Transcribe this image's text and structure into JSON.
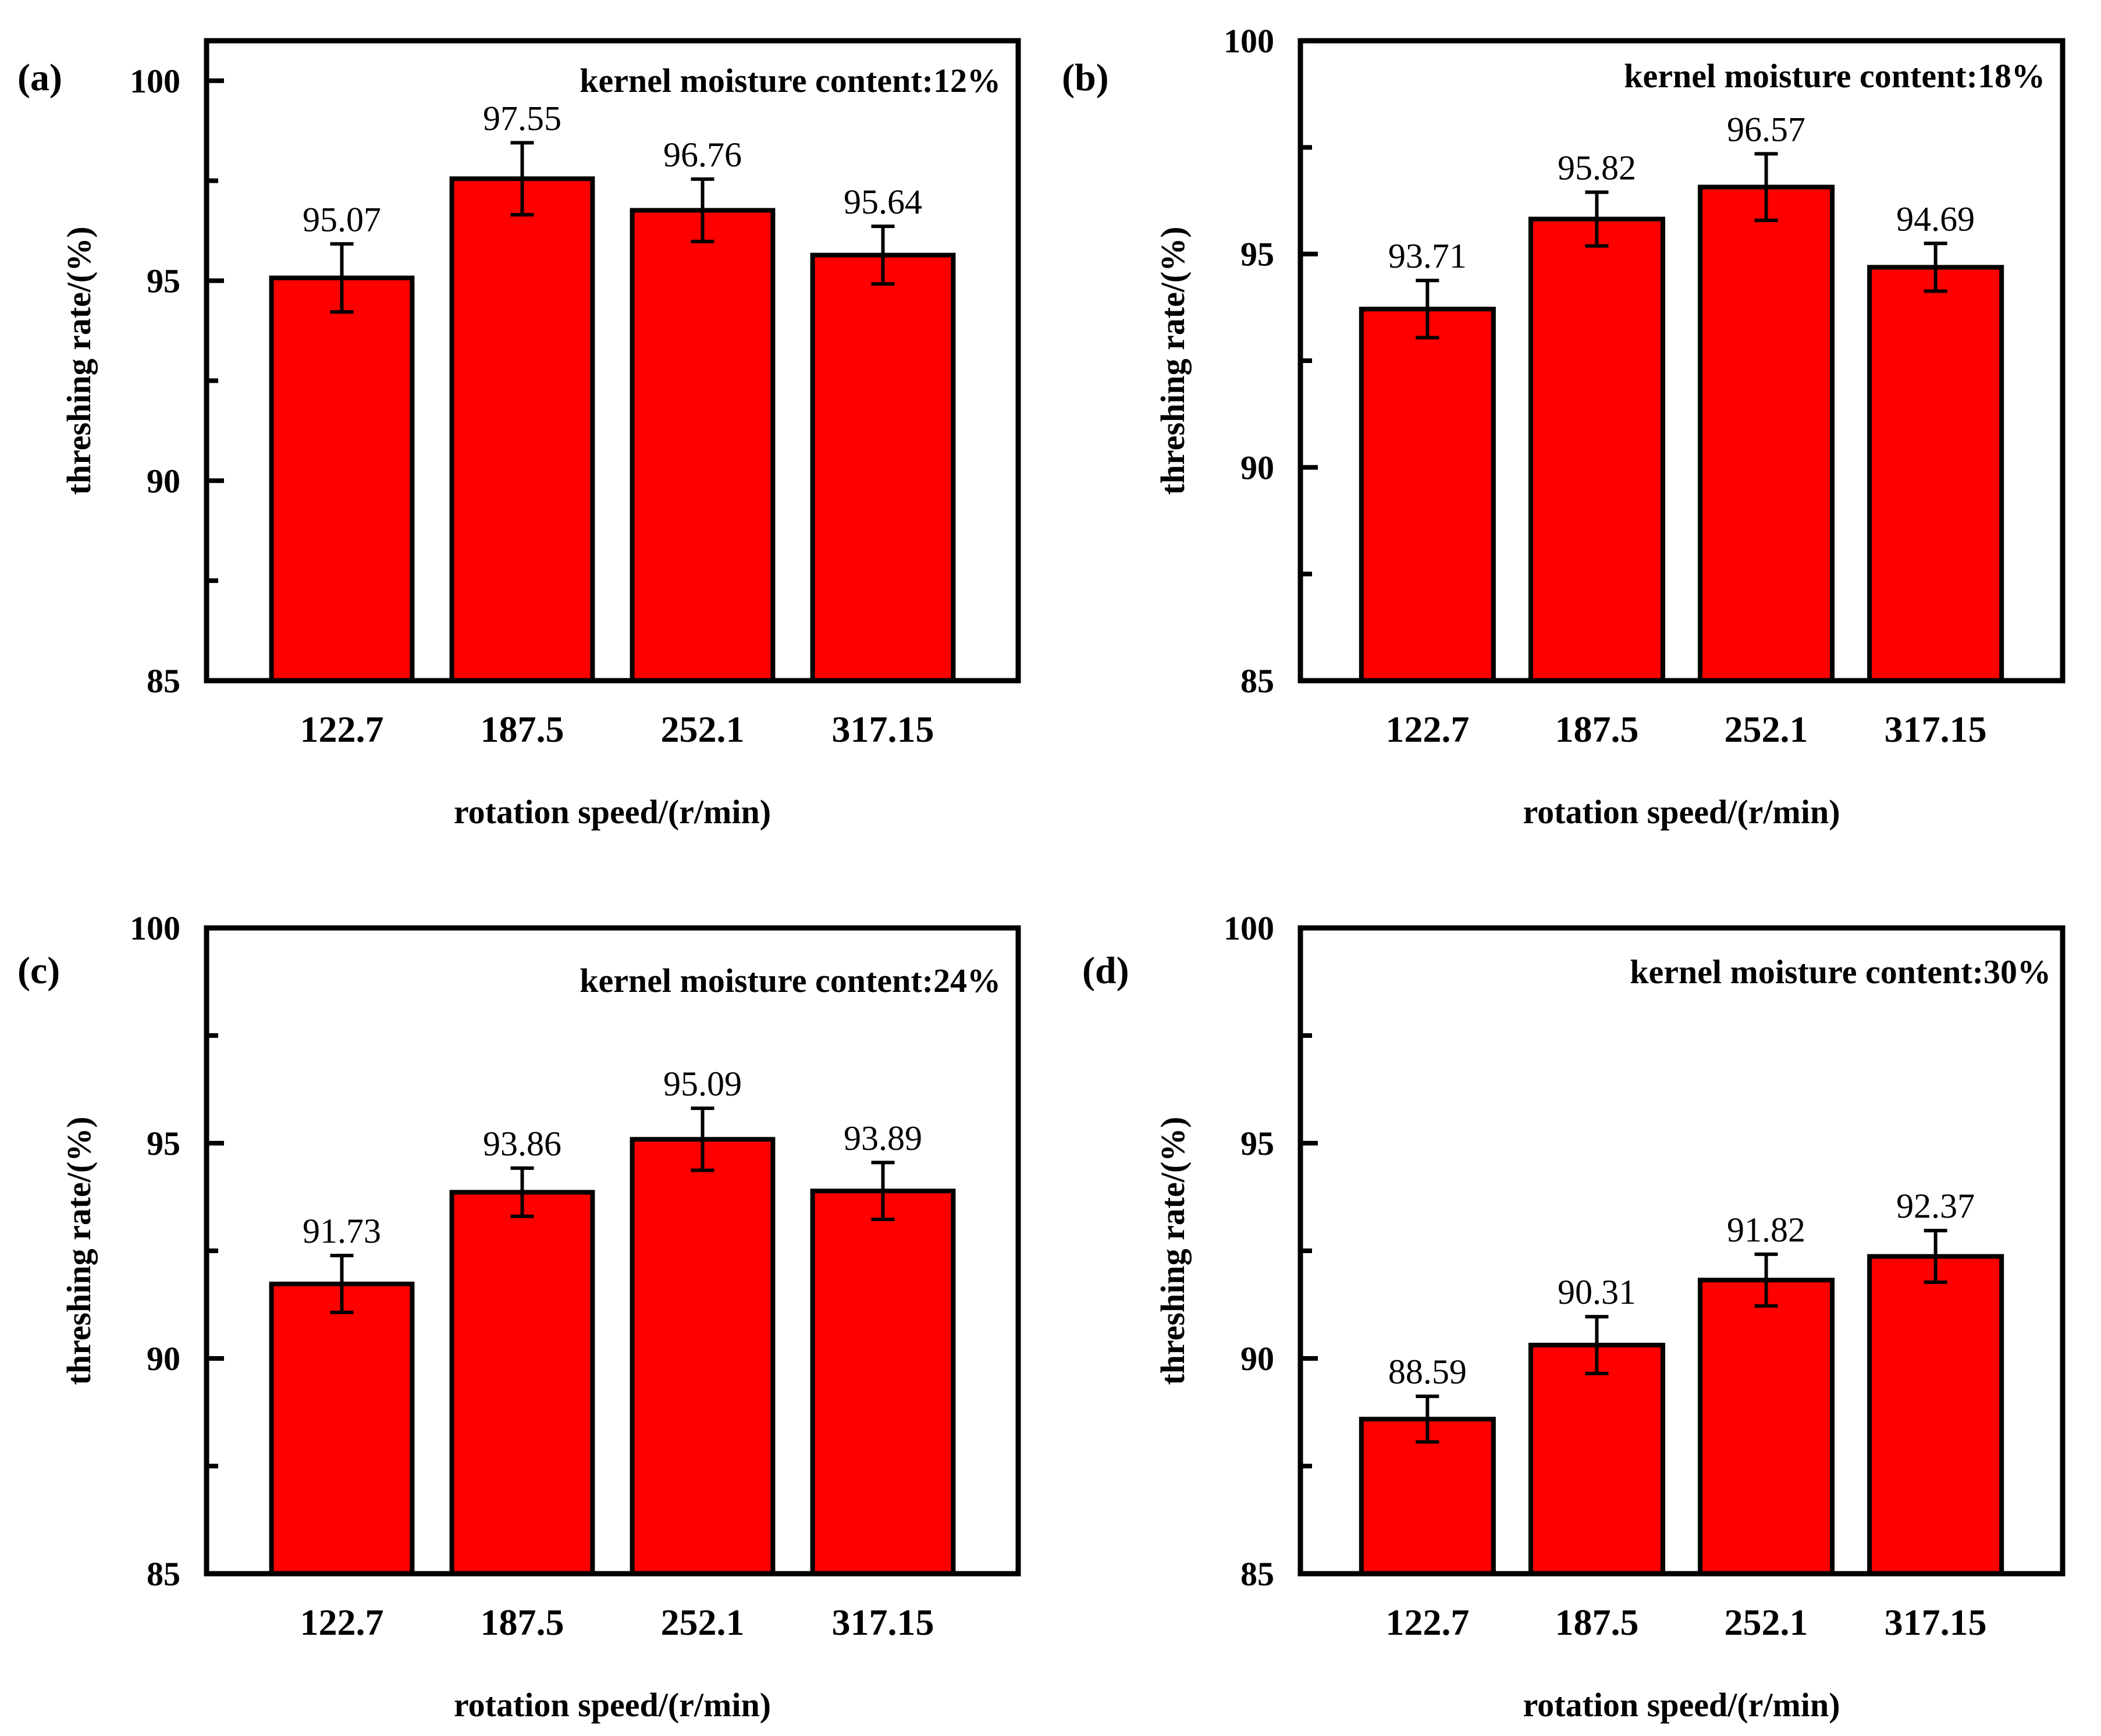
{
  "colors": {
    "bar": "#ff0000",
    "outline": "#000000",
    "background": "#ffffff"
  },
  "chart_data": [
    {
      "type": "bar",
      "panel_label": "(a)",
      "annotation": "kernel moisture content:12%",
      "xlabel": "rotation speed/(r/min)",
      "ylabel": "threshing rate/(%)",
      "categories": [
        "122.7",
        "187.5",
        "252.1",
        "317.15"
      ],
      "values": [
        95.07,
        97.55,
        96.76,
        95.64
      ],
      "value_labels": [
        "95.07",
        "97.55",
        "96.76",
        "95.64"
      ],
      "errors": [
        0.85,
        0.9,
        0.78,
        0.72
      ],
      "ylim": [
        85,
        101
      ],
      "yticks": [
        "85",
        "90",
        "95",
        "100"
      ],
      "grid": false
    },
    {
      "type": "bar",
      "panel_label": "(b)",
      "annotation": "kernel moisture content:18%",
      "xlabel": "rotation speed/(r/min)",
      "ylabel": "threshing rate/(%)",
      "categories": [
        "122.7",
        "187.5",
        "252.1",
        "317.15"
      ],
      "values": [
        93.71,
        95.82,
        96.57,
        94.69
      ],
      "value_labels": [
        "93.71",
        "95.82",
        "96.57",
        "94.69"
      ],
      "errors": [
        0.67,
        0.63,
        0.78,
        0.56
      ],
      "ylim": [
        85,
        100
      ],
      "yticks": [
        "85",
        "90",
        "95",
        "100"
      ],
      "grid": false
    },
    {
      "type": "bar",
      "panel_label": "(c)",
      "annotation": "kernel moisture content:24%",
      "xlabel": "rotation speed/(r/min)",
      "ylabel": "threshing rate/(%)",
      "categories": [
        "122.7",
        "187.5",
        "252.1",
        "317.15"
      ],
      "values": [
        91.73,
        93.86,
        95.09,
        93.89
      ],
      "value_labels": [
        "91.73",
        "93.86",
        "95.09",
        "93.89"
      ],
      "errors": [
        0.66,
        0.56,
        0.72,
        0.66
      ],
      "ylim": [
        85,
        100
      ],
      "yticks": [
        "85",
        "90",
        "95",
        "100"
      ],
      "grid": false
    },
    {
      "type": "bar",
      "panel_label": "(d)",
      "annotation": "kernel moisture content:30%",
      "xlabel": "rotation speed/(r/min)",
      "ylabel": "threshing rate/(%)",
      "categories": [
        "122.7",
        "187.5",
        "252.1",
        "317.15"
      ],
      "values": [
        88.59,
        90.31,
        91.82,
        92.37
      ],
      "value_labels": [
        "88.59",
        "90.31",
        "91.82",
        "92.37"
      ],
      "errors": [
        0.53,
        0.66,
        0.6,
        0.6
      ],
      "ylim": [
        85,
        100
      ],
      "yticks": [
        "85",
        "90",
        "95",
        "100"
      ],
      "grid": false
    }
  ]
}
